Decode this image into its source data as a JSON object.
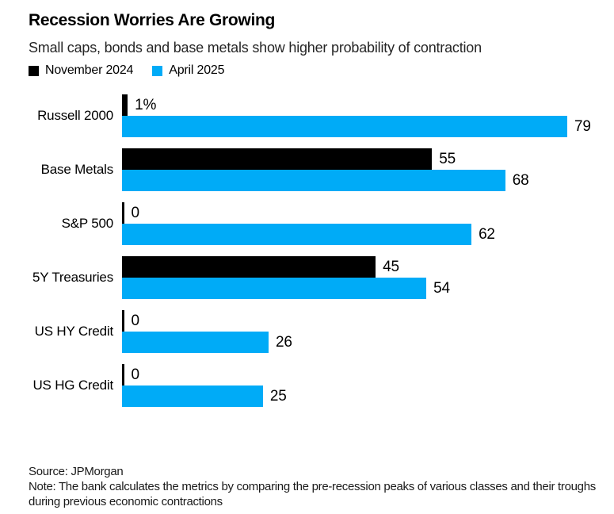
{
  "header": {
    "title": "Recession Worries Are Growing",
    "subtitle": "Small caps, bonds and base metals show higher probability of contraction"
  },
  "chart_data": {
    "type": "bar",
    "orientation": "horizontal",
    "title": "Recession Worries Are Growing",
    "subtitle": "Small caps, bonds and base metals show higher probability of contraction",
    "categories": [
      "Russell 2000",
      "Base Metals",
      "S&P 500",
      "5Y Treasuries",
      "US HY Credit",
      "US HG Credit"
    ],
    "series": [
      {
        "name": "November 2024",
        "color": "#000000",
        "values": [
          1,
          55,
          0,
          45,
          0,
          0
        ],
        "value_labels": [
          "1%",
          "55",
          "0",
          "45",
          "0",
          "0"
        ]
      },
      {
        "name": "April 2025",
        "color": "#00abf7",
        "values": [
          79,
          68,
          62,
          54,
          26,
          25
        ],
        "value_labels": [
          "79",
          "68",
          "62",
          "54",
          "26",
          "25"
        ]
      }
    ],
    "xlim": [
      0,
      79
    ],
    "legend_position": "top",
    "grid": false,
    "axes_hidden": true,
    "value_labels_shown": true
  },
  "footer": {
    "source": "Source: JPMorgan",
    "note": "Note: The bank calculates the metrics by comparing the pre-recession peaks of various classes and their troughs during previous economic contractions"
  }
}
